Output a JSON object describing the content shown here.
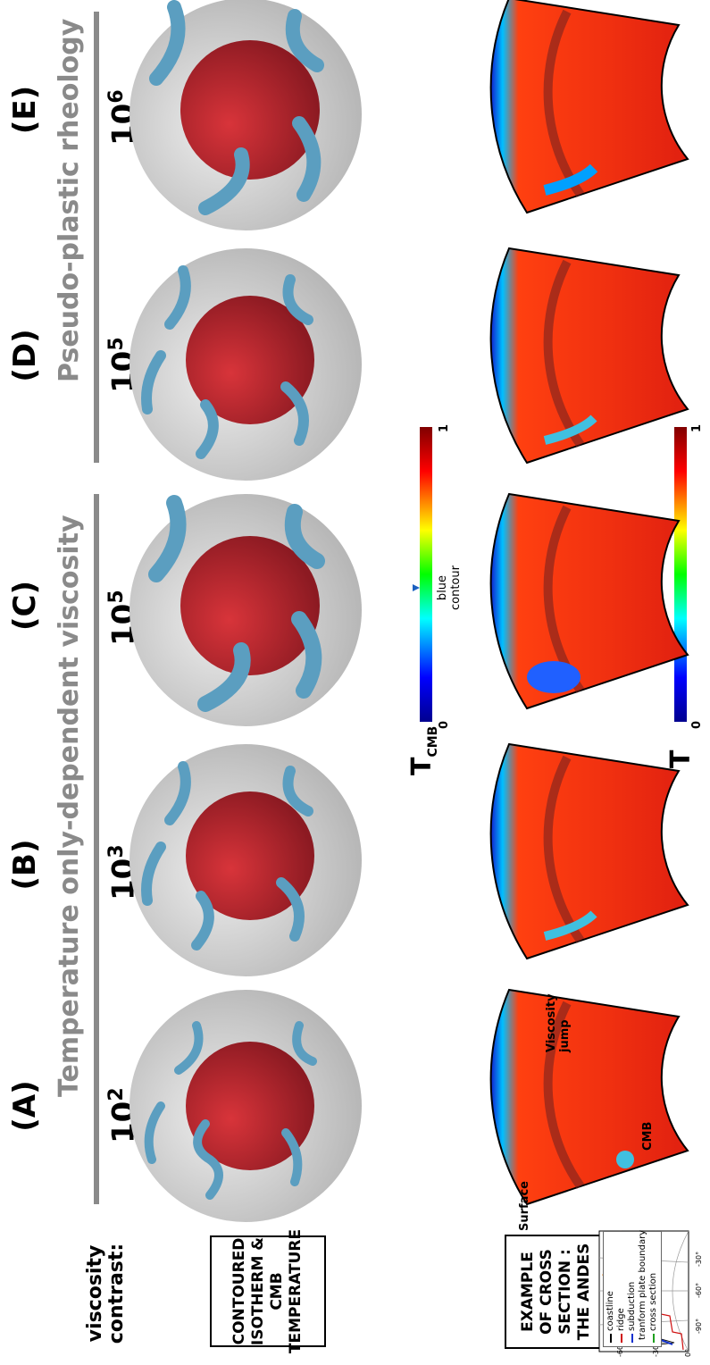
{
  "labels": {
    "viscosity_contrast": "viscosity contrast:",
    "contoured_box": "CONTOURED ISOTHERM & CMB TEMPERATURE",
    "example_box": "EXAMPLE OF CROSS SECTION : THE ANDES"
  },
  "groups": [
    {
      "title": "Temperature only-dependent viscosity"
    },
    {
      "title": "Pseudo-plastic rheology"
    }
  ],
  "panels": [
    {
      "id": "(A)",
      "base": "10",
      "exp": "2"
    },
    {
      "id": "(B)",
      "base": "10",
      "exp": "3"
    },
    {
      "id": "(C)",
      "base": "10",
      "exp": "5"
    },
    {
      "id": "(D)",
      "base": "10",
      "exp": "5"
    },
    {
      "id": "(E)",
      "base": "10",
      "exp": "6"
    }
  ],
  "cross_section_labels": {
    "surface": "Surface",
    "viscosity_jump": "Viscosity jump",
    "cmb": "CMB"
  },
  "colorbars": {
    "tcmb": {
      "symbol": "T",
      "subscript": "CMB",
      "min": "0",
      "max": "1",
      "marker_label": "blue contour"
    },
    "t": {
      "symbol": "T",
      "min": "0",
      "max": "1"
    }
  },
  "map": {
    "legend": [
      "coastline",
      "ridge",
      "subduction",
      "tranform plate boundary",
      "cross section"
    ],
    "legend_colors": [
      "#000000",
      "#d01010",
      "#1030d0",
      "#e08020",
      "#20a020"
    ],
    "lat_ticks": [
      "0°",
      "-30°",
      "-60°"
    ],
    "lon_ticks": [
      "-90°",
      "-60°",
      "-30°"
    ]
  }
}
